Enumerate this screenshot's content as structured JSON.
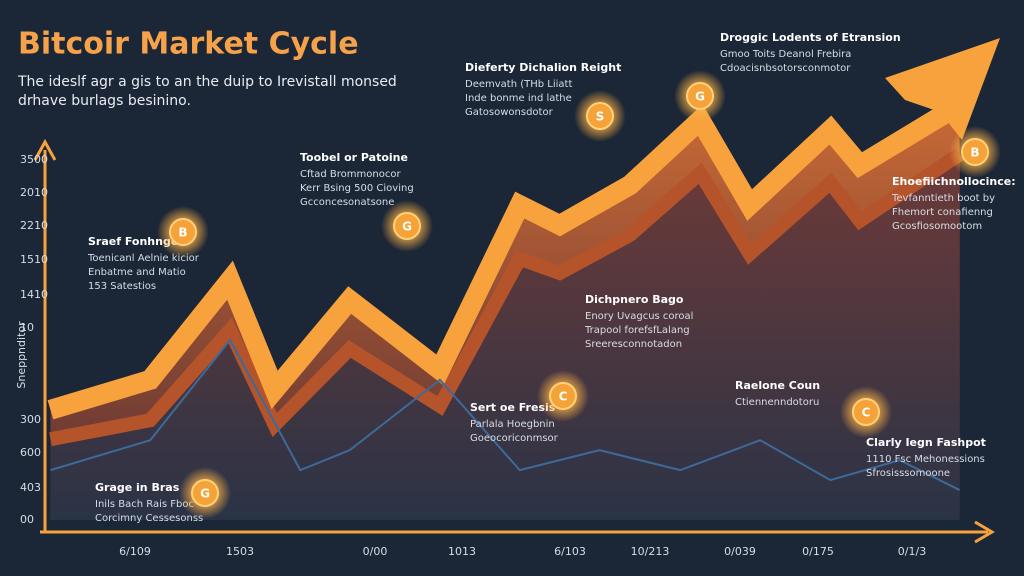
{
  "chart_data": {
    "type": "area",
    "title": "Bitcoir Market Cycle",
    "subtitle": [
      "The ideslf agr a gis to an the duip to Irevistall monsed",
      "drhave burlags besinino."
    ],
    "y_axis_label": "Sneppnditor",
    "y_labels": [
      "3500",
      "2010",
      "2210",
      "1510",
      "1410",
      "10",
      "300",
      "600",
      "403",
      "00"
    ],
    "categories": [
      "6/109",
      "1503",
      "0/00",
      "1013",
      "6/103",
      "10/213",
      "0/039",
      "0/175",
      "0/1/3"
    ],
    "xlim": [
      0,
      100
    ],
    "ylim": [
      0,
      100
    ],
    "series": [
      {
        "color": "#f7a23c",
        "x": [
          1.1,
          11.6,
          20,
          24.7,
          32.6,
          42.1,
          50.5,
          54.7,
          62.1,
          69.5,
          74.7,
          83.2,
          86.3,
          96.8
        ],
        "values": [
          23.2,
          29.5,
          50.5,
          27.4,
          46.3,
          31.6,
          66.3,
          62.1,
          70.5,
          84.2,
          66.3,
          82.1,
          74.7,
          87.4
        ]
      },
      {
        "color": "#b5542b",
        "x": [
          1.1,
          11.6,
          20,
          24.7,
          32.6,
          42.1,
          50.5,
          54.7,
          62.1,
          69.5,
          74.7,
          83.2,
          86.3,
          96.8
        ],
        "values": [
          17,
          21,
          40,
          20,
          36,
          24,
          55,
          52,
          60,
          73,
          56,
          71,
          63,
          77
        ]
      },
      {
        "color": "#3d6a9a",
        "x": [
          1.1,
          11.6,
          20,
          27.4,
          32.6,
          42.1,
          50.5,
          58.9,
          67.4,
          75.8,
          83.2,
          90.5,
          96.8
        ],
        "values": [
          10.5,
          16.8,
          37.9,
          10.5,
          14.7,
          29.5,
          10.5,
          14.7,
          10.5,
          16.8,
          8.4,
          12.6,
          6.3
        ]
      }
    ],
    "annotations": [
      {
        "title": "Droggic Lodents of Etransion",
        "lines": [
          "Gmoo Toits Deanol Frebira",
          "Cdoacisnbsotorsconmotor"
        ]
      },
      {
        "title": "Dieferty Dichalion Reight",
        "lines": [
          "Deemvath (THb Liiatt",
          "Inde bonme ind lathe",
          "Gatosowonsdotor"
        ]
      },
      {
        "title": "Toobel or Patoine",
        "lines": [
          "Cftad Brommonocor",
          "Kerr Bsing 500 Cioving",
          "Gcconcesonatsone"
        ]
      },
      {
        "title": "Sraef Fonhngo",
        "lines": [
          "Toenicanl Aelnie kicior",
          "Enbatme and Matio",
          "153 Satestios"
        ]
      },
      {
        "title": "Ehoefiichnollocince:",
        "lines": [
          "Tevfanntieth boot by",
          "Fhemort conafienng",
          "Gcosfiosomootom"
        ]
      },
      {
        "title": "Dichpnero Bago",
        "lines": [
          "Enory Uvagcus coroal",
          "Trapool forefsfLalang",
          "Sreeresconnotadon"
        ]
      },
      {
        "title": "Sert oe Fresis",
        "lines": [
          "Parlala Hoegbnin",
          "Goeocoriconmsor"
        ]
      },
      {
        "title": "Raelone Coun",
        "lines": [
          "Ctiennenndotoru"
        ]
      },
      {
        "title": "Clarly Iegn Fashpot",
        "lines": [
          "1110 Fsc Mehonessions",
          "Sfrosisssomoone"
        ]
      },
      {
        "title": "Grage in Bras",
        "lines": [
          "Inils Bach Rais Fboc",
          "Corcimny Cessesonss"
        ]
      }
    ],
    "coins": [
      "B",
      "G",
      "S",
      "G",
      "B",
      "C",
      "C",
      "G"
    ]
  }
}
